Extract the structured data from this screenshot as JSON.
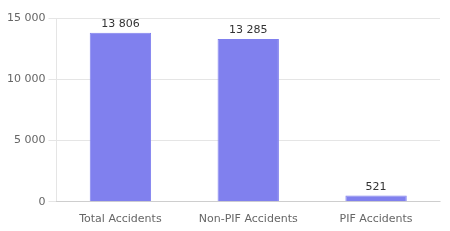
{
  "chart_data": {
    "type": "bar",
    "categories": [
      "Total Accidents",
      "Non-PIF Accidents",
      "PIF Accidents"
    ],
    "values": [
      13806,
      13285,
      521
    ],
    "value_labels": [
      "13 806",
      "13 285",
      "521"
    ],
    "data_labels": true,
    "color": "#8080ee",
    "ylim": [
      0,
      15000
    ],
    "yticks": [
      0,
      {
        "value": 5000,
        "label": "5 000"
      },
      {
        "value": 10000,
        "label": "10 000"
      },
      {
        "value": 15000,
        "label": "15 000"
      }
    ],
    "grid": true
  }
}
